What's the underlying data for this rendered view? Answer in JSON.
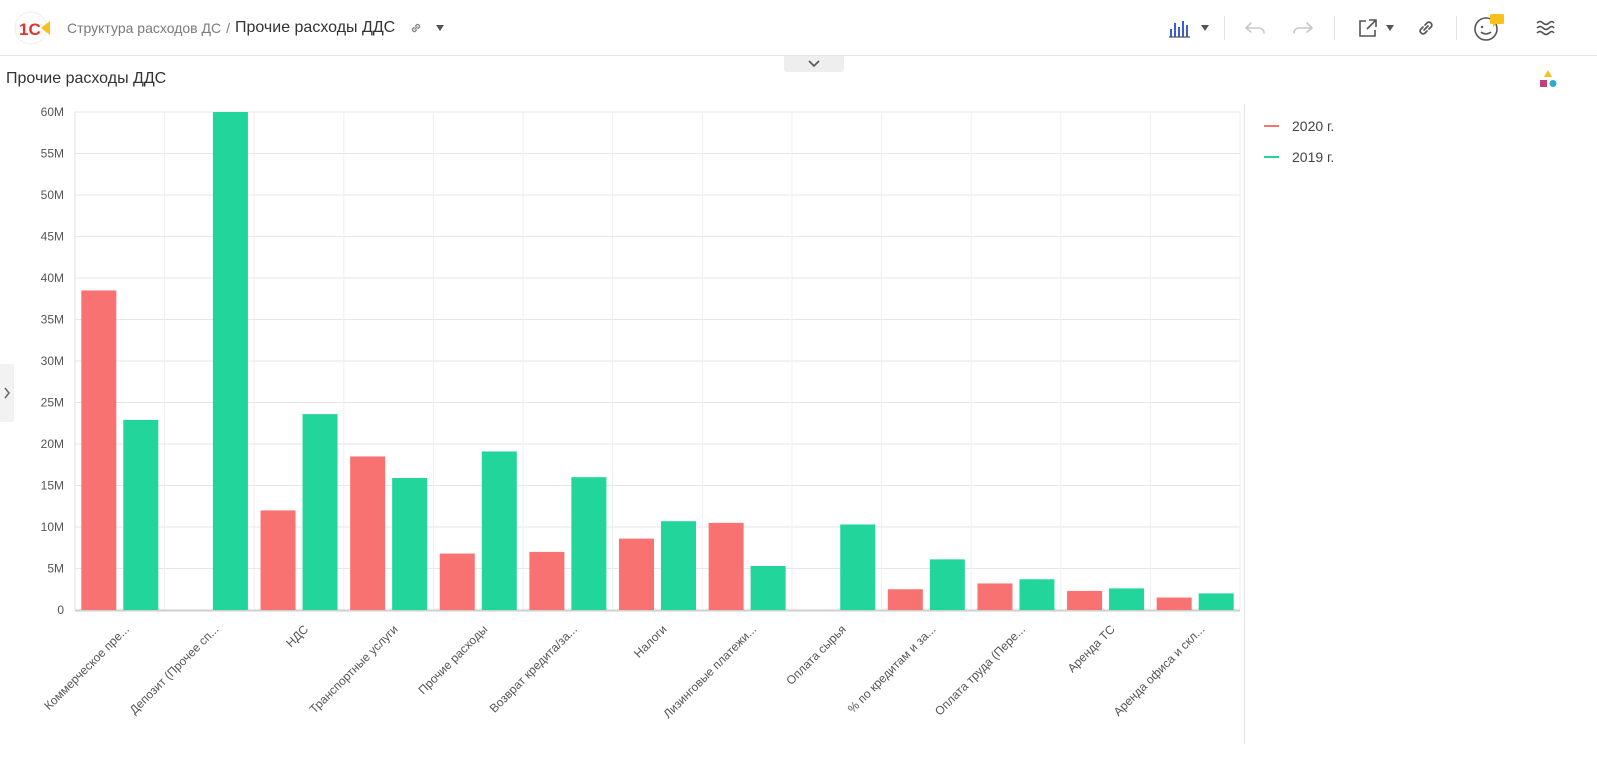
{
  "header": {
    "crumb_parent": "Структура расходов ДС",
    "crumb_separator": "/",
    "crumb_current": "Прочие расходы ДДС"
  },
  "icons": {
    "logo": "1c-logo-icon",
    "link": "link-icon",
    "dropdown": "chevron-down-icon",
    "chart_type": "bar-chart-icon",
    "undo": "undo-icon",
    "redo": "redo-icon",
    "export": "external-link-icon",
    "share": "link-icon",
    "avatar": "user-avatar-icon",
    "menu": "waves-menu-icon"
  },
  "colors": {
    "brand_red": "#e7332c",
    "brand_yellow": "#f9c21a",
    "series_2020": "#f87272",
    "series_2019": "#21d59b"
  },
  "chart_data": {
    "type": "bar",
    "title": "Прочие расходы ДДС",
    "xlabel": "",
    "ylabel": "",
    "ylim": [
      0,
      60000000
    ],
    "ytick_values": [
      0,
      5000000,
      10000000,
      15000000,
      20000000,
      25000000,
      30000000,
      35000000,
      40000000,
      45000000,
      50000000,
      55000000,
      60000000
    ],
    "ytick_labels": [
      "0",
      "5M",
      "10M",
      "15M",
      "20M",
      "25M",
      "30M",
      "35M",
      "40M",
      "45M",
      "50M",
      "55M",
      "60M"
    ],
    "grid": true,
    "legend_position": "right",
    "categories": [
      "Коммерческое пре...",
      "Депозит (Прочее сп...",
      "НДС",
      "Транспортные услуги",
      "Прочие расходы",
      "Возврат кредита/за...",
      "Налоги",
      "Лизинговые платежи...",
      "Оплата сырья",
      "% по кредитам и за...",
      "Оплата труда (Пере...",
      "Аренда ТС",
      "Аренда офиса и скл..."
    ],
    "series": [
      {
        "name": "2020 г.",
        "color": "#f87272",
        "values": [
          38500000,
          0,
          12000000,
          18500000,
          6800000,
          7000000,
          8600000,
          10500000,
          0,
          2500000,
          3200000,
          2300000,
          1500000
        ]
      },
      {
        "name": "2019 г.",
        "color": "#21d59b",
        "values": [
          22900000,
          60000000,
          23600000,
          15900000,
          19100000,
          16000000,
          10700000,
          5300000,
          10300000,
          6100000,
          3700000,
          2600000,
          2000000
        ]
      }
    ]
  }
}
